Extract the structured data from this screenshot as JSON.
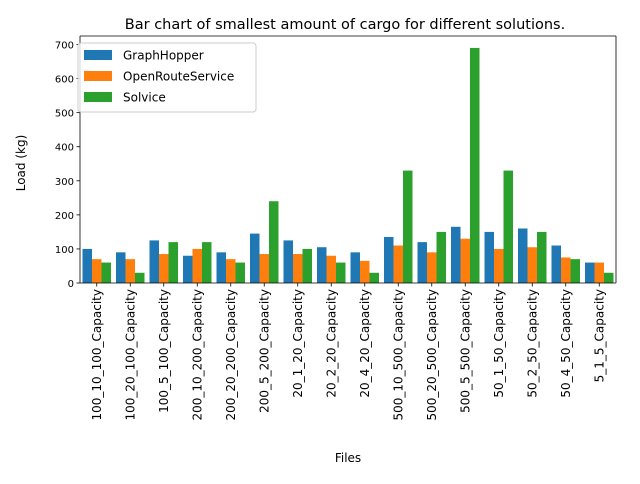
{
  "chart_data": {
    "type": "bar",
    "title": "Bar chart of smallest amount of cargo for different solutions.",
    "xlabel": "Files",
    "ylabel": "Load (kg)",
    "ylim": [
      0,
      725
    ],
    "yticks": [
      0,
      100,
      200,
      300,
      400,
      500,
      600,
      700
    ],
    "legend_position": "top-left",
    "grid": false,
    "categories": [
      "100_10_100_Capacity",
      "100_20_100_Capacity",
      "100_5_100_Capacity",
      "200_10_200_Capacity",
      "200_20_200_Capacity",
      "200_5_200_Capacity",
      "20_1_20_Capacity",
      "20_2_20_Capacity",
      "20_4_20_Capacity",
      "500_10_500_Capacity",
      "500_20_500_Capacity",
      "500_5_500_Capacity",
      "50_1_50_Capacity",
      "50_2_50_Capacity",
      "50_4_50_Capacity",
      "5_1_5_Capacity"
    ],
    "series": [
      {
        "name": "GraphHopper",
        "color": "#1f77b4",
        "values": [
          100,
          90,
          125,
          80,
          90,
          145,
          125,
          105,
          90,
          135,
          120,
          165,
          150,
          160,
          110,
          60
        ]
      },
      {
        "name": "OpenRouteService",
        "color": "#ff7f0e",
        "values": [
          70,
          70,
          85,
          100,
          70,
          85,
          85,
          80,
          65,
          110,
          90,
          130,
          100,
          105,
          75,
          60
        ]
      },
      {
        "name": "Solvice",
        "color": "#2ca02c",
        "values": [
          60,
          30,
          120,
          120,
          60,
          240,
          100,
          60,
          30,
          330,
          150,
          690,
          330,
          150,
          70,
          30
        ]
      }
    ]
  }
}
